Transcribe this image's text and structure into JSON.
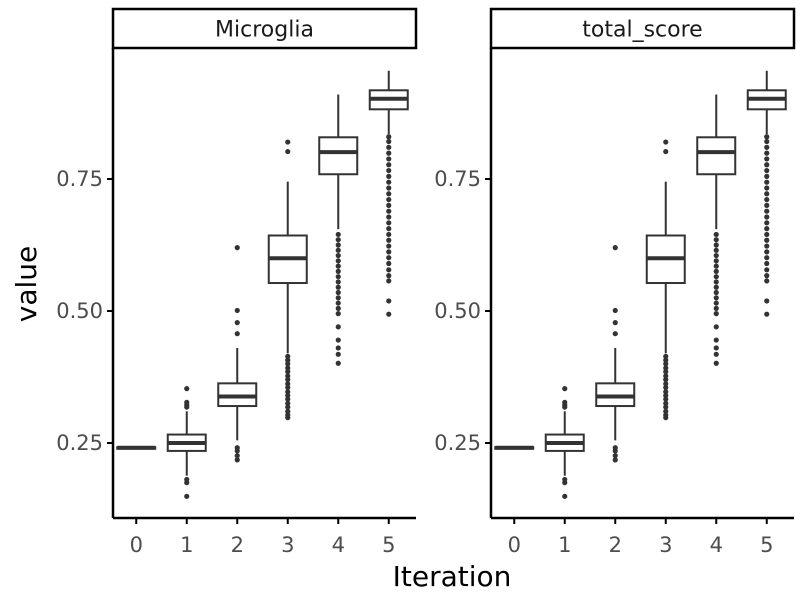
{
  "chart_data": {
    "type": "boxplot",
    "xlabel": "Iteration",
    "ylabel": "value",
    "ylim": [
      0.1,
      1.0
    ],
    "yticks": [
      0.25,
      0.5,
      0.75
    ],
    "ytick_labels": [
      "0.25",
      "0.50",
      "0.75"
    ],
    "categories": [
      "0",
      "1",
      "2",
      "3",
      "4",
      "5"
    ],
    "grid": false,
    "colors": {
      "box": "#333333",
      "fill": "#ffffff",
      "strip_border": "#000000",
      "axis": "#000000"
    },
    "facets": [
      {
        "title": "Microglia",
        "boxes": [
          {
            "x": "0",
            "q1": 0.24,
            "median": 0.241,
            "q3": 0.242,
            "whisker_low": 0.24,
            "whisker_high": 0.243,
            "outliers": []
          },
          {
            "x": "1",
            "q1": 0.235,
            "median": 0.25,
            "q3": 0.266,
            "whisker_low": 0.188,
            "whisker_high": 0.31,
            "outliers": [
              0.149,
              0.175,
              0.181,
              0.318,
              0.322,
              0.327,
              0.353
            ]
          },
          {
            "x": "2",
            "q1": 0.32,
            "median": 0.338,
            "q3": 0.363,
            "whisker_low": 0.255,
            "whisker_high": 0.43,
            "outliers": [
              0.218,
              0.226,
              0.235,
              0.241,
              0.457,
              0.478,
              0.501,
              0.62
            ]
          },
          {
            "x": "3",
            "q1": 0.553,
            "median": 0.6,
            "q3": 0.643,
            "whisker_low": 0.42,
            "whisker_high": 0.745,
            "outliers": [
              0.298,
              0.303,
              0.31,
              0.318,
              0.325,
              0.333,
              0.34,
              0.347,
              0.355,
              0.362,
              0.37,
              0.377,
              0.385,
              0.392,
              0.4,
              0.407,
              0.414,
              0.802,
              0.82
            ]
          },
          {
            "x": "4",
            "q1": 0.759,
            "median": 0.801,
            "q3": 0.829,
            "whisker_low": 0.655,
            "whisker_high": 0.91,
            "outliers": [
              0.401,
              0.418,
              0.43,
              0.445,
              0.47,
              0.495,
              0.505,
              0.515,
              0.525,
              0.535,
              0.545,
              0.555,
              0.565,
              0.575,
              0.585,
              0.595,
              0.605,
              0.615,
              0.625,
              0.635,
              0.645
            ]
          },
          {
            "x": "5",
            "q1": 0.882,
            "median": 0.902,
            "q3": 0.918,
            "whisker_low": 0.835,
            "whisker_high": 0.955,
            "outliers": [
              0.494,
              0.519,
              0.557,
              0.567,
              0.578,
              0.59,
              0.601,
              0.612,
              0.623,
              0.634,
              0.645,
              0.656,
              0.667,
              0.678,
              0.689,
              0.7,
              0.711,
              0.722,
              0.733,
              0.744,
              0.755,
              0.766,
              0.777,
              0.788,
              0.799,
              0.81,
              0.821,
              0.83
            ]
          }
        ]
      },
      {
        "title": "total_score",
        "boxes": [
          {
            "x": "0",
            "q1": 0.24,
            "median": 0.241,
            "q3": 0.242,
            "whisker_low": 0.24,
            "whisker_high": 0.243,
            "outliers": []
          },
          {
            "x": "1",
            "q1": 0.235,
            "median": 0.25,
            "q3": 0.266,
            "whisker_low": 0.188,
            "whisker_high": 0.31,
            "outliers": [
              0.149,
              0.175,
              0.181,
              0.318,
              0.322,
              0.327,
              0.353
            ]
          },
          {
            "x": "2",
            "q1": 0.32,
            "median": 0.338,
            "q3": 0.363,
            "whisker_low": 0.255,
            "whisker_high": 0.43,
            "outliers": [
              0.218,
              0.226,
              0.235,
              0.241,
              0.457,
              0.478,
              0.501,
              0.62
            ]
          },
          {
            "x": "3",
            "q1": 0.553,
            "median": 0.6,
            "q3": 0.643,
            "whisker_low": 0.42,
            "whisker_high": 0.745,
            "outliers": [
              0.298,
              0.303,
              0.31,
              0.318,
              0.325,
              0.333,
              0.34,
              0.347,
              0.355,
              0.362,
              0.37,
              0.377,
              0.385,
              0.392,
              0.4,
              0.407,
              0.414,
              0.802,
              0.82
            ]
          },
          {
            "x": "4",
            "q1": 0.759,
            "median": 0.801,
            "q3": 0.829,
            "whisker_low": 0.655,
            "whisker_high": 0.91,
            "outliers": [
              0.401,
              0.418,
              0.43,
              0.445,
              0.47,
              0.495,
              0.505,
              0.515,
              0.525,
              0.535,
              0.545,
              0.555,
              0.565,
              0.575,
              0.585,
              0.595,
              0.605,
              0.615,
              0.625,
              0.635,
              0.645
            ]
          },
          {
            "x": "5",
            "q1": 0.882,
            "median": 0.902,
            "q3": 0.918,
            "whisker_low": 0.835,
            "whisker_high": 0.955,
            "outliers": [
              0.494,
              0.519,
              0.557,
              0.567,
              0.578,
              0.59,
              0.601,
              0.612,
              0.623,
              0.634,
              0.645,
              0.656,
              0.667,
              0.678,
              0.689,
              0.7,
              0.711,
              0.722,
              0.733,
              0.744,
              0.755,
              0.766,
              0.777,
              0.788,
              0.799,
              0.81,
              0.821,
              0.83
            ]
          }
        ]
      }
    ]
  }
}
